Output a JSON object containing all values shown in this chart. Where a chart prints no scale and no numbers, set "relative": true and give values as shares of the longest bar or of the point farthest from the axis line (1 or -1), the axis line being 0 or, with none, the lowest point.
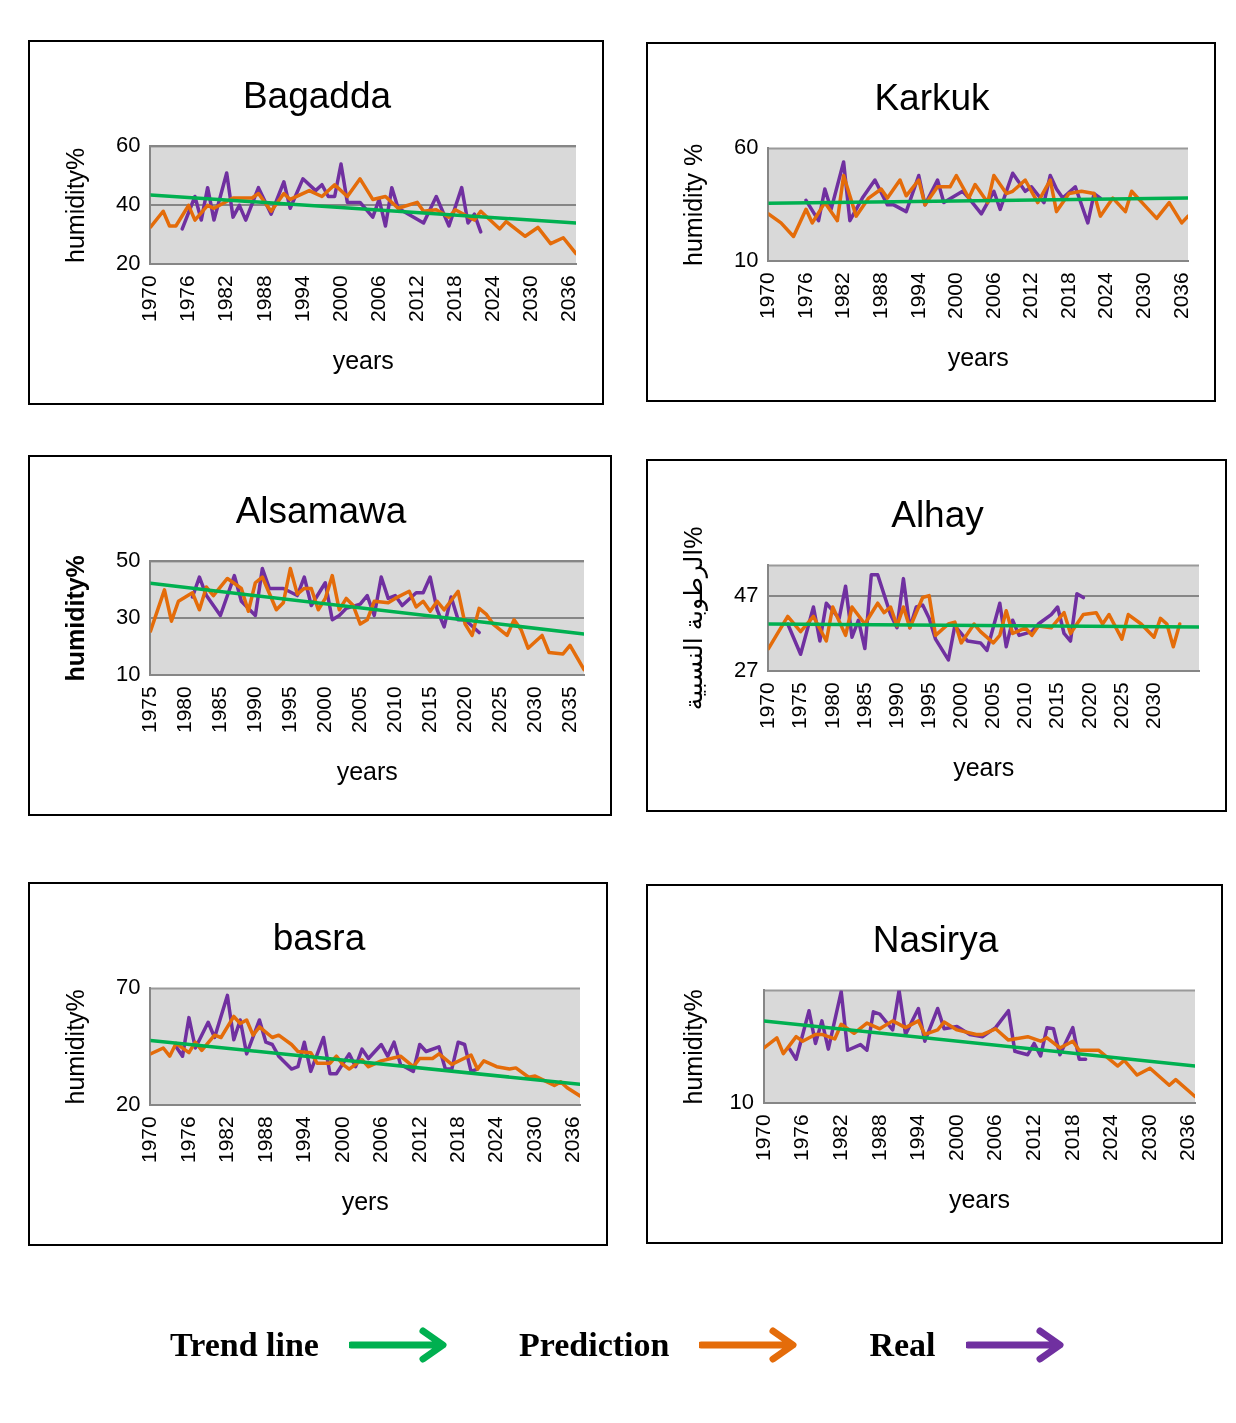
{
  "chart_data": [
    {
      "type": "line",
      "title": "Bagadda",
      "xlabel": "years",
      "ylabel": "humidity%",
      "xlim": [
        1970,
        2037
      ],
      "xticks": [
        1970,
        1976,
        1982,
        1988,
        1994,
        2000,
        2006,
        2012,
        2018,
        2024,
        2030,
        2036
      ],
      "ylim": [
        20,
        60
      ],
      "yticks": [
        20,
        40,
        60
      ],
      "grid": "y",
      "marker": "none",
      "series": [
        {
          "color": "#00b050",
          "x": [
            1970,
            2037
          ],
          "values": [
            43.5,
            34
          ]
        },
        {
          "color": "#e46c0a",
          "x": [
            1970,
            1972,
            1973,
            1974,
            1976,
            1977,
            1979,
            1980,
            1983,
            1986,
            1987,
            1989,
            1991,
            1992,
            1995,
            1997,
            1999,
            2001,
            2003,
            2005,
            2007,
            2009,
            2012,
            2013,
            2015,
            2017,
            2018,
            2021,
            2022,
            2025,
            2026,
            2029,
            2031,
            2033,
            2035,
            2037
          ],
          "values": [
            32.6,
            38,
            33,
            33,
            40,
            35,
            40,
            39,
            42.5,
            42.5,
            44,
            38,
            44,
            42,
            45,
            43,
            47,
            43,
            49,
            42,
            43,
            39,
            41,
            38,
            38.5,
            36,
            38.5,
            35,
            38,
            32,
            34.5,
            29.5,
            32.5,
            27,
            29,
            23.6
          ]
        },
        {
          "color": "#7030a0",
          "x": [
            1975,
            1977,
            1978,
            1979,
            1980,
            1982,
            1983,
            1984,
            1985,
            1987,
            1989,
            1991,
            1992,
            1994,
            1996,
            1997,
            1998,
            1999,
            2000,
            2001,
            2003,
            2005,
            2006,
            2007,
            2008,
            2009,
            2013,
            2015,
            2017,
            2019,
            2020,
            2021,
            2022
          ],
          "values": [
            32,
            43,
            35,
            46,
            35,
            51,
            36,
            40,
            35,
            46,
            37,
            48,
            39,
            49,
            45,
            47,
            43,
            43,
            54,
            41,
            41,
            36,
            42,
            33,
            46,
            39,
            34,
            43,
            33,
            46,
            34,
            37,
            31
          ]
        }
      ]
    },
    {
      "type": "line",
      "title": "Karkuk",
      "xlabel": "years",
      "ylabel": "humidity %",
      "xlim": [
        1970,
        2037
      ],
      "xticks": [
        1970,
        1976,
        1982,
        1988,
        1994,
        2000,
        2006,
        2012,
        2018,
        2024,
        2030,
        2036
      ],
      "ylim": [
        10,
        60
      ],
      "yticks": [
        10,
        60
      ],
      "marker": "none",
      "series": [
        {
          "color": "#00b050",
          "x": [
            1970,
            2037
          ],
          "values": [
            35.7,
            38
          ]
        },
        {
          "color": "#e46c0a",
          "x": [
            1970,
            1972,
            1974,
            1976,
            1977,
            1979,
            1981,
            1982,
            1984,
            1986,
            1988,
            1989,
            1991,
            1992,
            1994,
            1995,
            1997,
            1999,
            2000,
            2002,
            2003,
            2005,
            2006,
            2008,
            2009,
            2011,
            2013,
            2015,
            2016,
            2018,
            2020,
            2022,
            2023,
            2025,
            2027,
            2028,
            2030,
            2032,
            2034,
            2036,
            2037
          ],
          "values": [
            31,
            27,
            21,
            33,
            27,
            36,
            28,
            48,
            30,
            38,
            42,
            38,
            46,
            39,
            46,
            35,
            43,
            43,
            48,
            38,
            44,
            36,
            48,
            40,
            41,
            46,
            36,
            46,
            32,
            40,
            41,
            40,
            30,
            38,
            32,
            41,
            35,
            29,
            36,
            27,
            30
          ]
        },
        {
          "color": "#7030a0",
          "x": [
            1976,
            1978,
            1979,
            1980,
            1982,
            1983,
            1985,
            1987,
            1989,
            1990,
            1992,
            1994,
            1995,
            1997,
            1998,
            2001,
            2002,
            2004,
            2006,
            2007,
            2009,
            2011,
            2012,
            2014,
            2015,
            2016,
            2017,
            2019,
            2021,
            2022,
            2023
          ],
          "values": [
            37,
            28,
            42,
            33,
            54,
            28,
            38,
            46,
            35,
            35,
            32,
            48,
            35,
            46,
            36,
            41,
            38,
            31,
            41,
            33,
            49,
            41,
            43,
            36,
            48,
            42,
            38,
            43,
            27,
            40,
            38
          ]
        }
      ]
    },
    {
      "type": "line",
      "title": "Alsamawa",
      "xlabel": "years",
      "ylabel": "humidity%",
      "xlim": [
        1975,
        2037
      ],
      "xticks": [
        1975,
        1980,
        1985,
        1990,
        1995,
        2000,
        2005,
        2010,
        2015,
        2020,
        2025,
        2030,
        2035
      ],
      "ylim": [
        10,
        50
      ],
      "yticks": [
        10,
        30,
        50
      ],
      "grid": "y",
      "marker": "none",
      "series": [
        {
          "color": "#00b050",
          "x": [
            1975,
            2037
          ],
          "values": [
            42.3,
            24.5
          ]
        },
        {
          "color": "#e46c0a",
          "x": [
            1975,
            1977,
            1978,
            1979,
            1981,
            1982,
            1983,
            1984,
            1986,
            1988,
            1989,
            1990,
            1991,
            1993,
            1994,
            1995,
            1996,
            1997,
            1998,
            1999,
            2000,
            2001,
            2002,
            2003,
            2004,
            2005,
            2006,
            2007,
            2009,
            2010,
            2012,
            2013,
            2014,
            2015,
            2016,
            2017,
            2019,
            2020,
            2021,
            2022,
            2023,
            2024,
            2026,
            2027,
            2028,
            2029,
            2031,
            2032,
            2034,
            2035,
            2037
          ],
          "values": [
            25.5,
            40,
            29,
            36,
            39,
            33,
            41,
            38,
            44,
            40.5,
            32.5,
            42.5,
            44.5,
            33,
            35.5,
            47.5,
            38.5,
            40.5,
            40.5,
            33,
            37,
            45,
            33,
            37,
            34.5,
            28,
            29.5,
            36,
            35.5,
            37,
            39.5,
            34,
            36,
            32.5,
            36,
            33,
            39.5,
            28,
            24,
            33.5,
            31.5,
            28,
            24,
            29.5,
            26,
            19.5,
            24,
            18,
            17.5,
            20.5,
            12
          ]
        },
        {
          "color": "#7030a0",
          "x": [
            1981,
            1982,
            1983,
            1985,
            1987,
            1988,
            1990,
            1991,
            1992,
            1994,
            1996,
            1997,
            1998,
            2000,
            2001,
            2002,
            2003,
            2005,
            2006,
            2007,
            2008,
            2009,
            2010,
            2011,
            2013,
            2014,
            2015,
            2016,
            2017,
            2018,
            2019,
            2020,
            2022
          ],
          "values": [
            37.5,
            44.5,
            38,
            31,
            45,
            36,
            31,
            47.5,
            40.5,
            40.5,
            38,
            44.5,
            34.5,
            42.5,
            29.5,
            31,
            33.5,
            35,
            38,
            31,
            44.5,
            37,
            38,
            34.5,
            39,
            39,
            44.5,
            33,
            27,
            37.5,
            29.5,
            29.5,
            25
          ]
        }
      ]
    },
    {
      "type": "line",
      "title": "Alhay",
      "xlabel": "years",
      "ylabel": "الرطوبة النسبية%",
      "xlim": [
        1970,
        2037
      ],
      "xticks": [
        1970,
        1975,
        1980,
        1985,
        1990,
        1995,
        2000,
        2005,
        2010,
        2015,
        2020,
        2025,
        2030
      ],
      "ylim": [
        27,
        55
      ],
      "yticks": [
        27,
        47
      ],
      "grid": "y",
      "marker": "none",
      "series": [
        {
          "color": "#00b050",
          "x": [
            1970,
            2037
          ],
          "values": [
            39.5,
            38.7
          ]
        },
        {
          "color": "#e46c0a",
          "x": [
            1970,
            1973,
            1975,
            1977,
            1979,
            1980,
            1982,
            1983,
            1985,
            1987,
            1988,
            1989,
            1990,
            1991,
            1992,
            1994,
            1995,
            1996,
            1998,
            1999,
            2000,
            2002,
            2003,
            2005,
            2006,
            2007,
            2008,
            2010,
            2011,
            2012,
            2014,
            2015,
            2016,
            2017,
            2019,
            2021,
            2022,
            2023,
            2025,
            2026,
            2028,
            2030,
            2031,
            2032,
            2033,
            2034
          ],
          "values": [
            33,
            41.5,
            37.5,
            41.5,
            35,
            44,
            36.5,
            44,
            39.5,
            45,
            42.5,
            44,
            39,
            44,
            38.5,
            46.5,
            47,
            36.5,
            39.5,
            40,
            34.5,
            39.5,
            37.5,
            34.5,
            36.5,
            43,
            37,
            38.5,
            36.5,
            39,
            38.5,
            40.5,
            42.5,
            37,
            42,
            42.5,
            39.5,
            42,
            35.5,
            42,
            39.5,
            36,
            41,
            39.5,
            33.5,
            39.5
          ]
        },
        {
          "color": "#7030a0",
          "x": [
            1973,
            1975,
            1977,
            1978,
            1979,
            1981,
            1982,
            1983,
            1984,
            1985,
            1986,
            1987,
            1989,
            1990,
            1991,
            1992,
            1993,
            1994,
            1995,
            1996,
            1998,
            1999,
            2001,
            2003,
            2004,
            2006,
            2007,
            2008,
            2009,
            2011,
            2012,
            2014,
            2015,
            2016,
            2017,
            2018,
            2019
          ],
          "values": [
            39.5,
            31.5,
            44,
            35,
            45,
            41,
            49.5,
            36,
            40.5,
            33,
            52.5,
            52.5,
            42,
            38.5,
            51.5,
            38.5,
            44,
            44.5,
            41,
            35.5,
            30,
            39,
            35,
            34.5,
            32.5,
            45,
            33.5,
            40.5,
            36.5,
            37.5,
            39.5,
            42,
            44,
            37,
            35,
            47.5,
            46.5
          ]
        }
      ]
    },
    {
      "type": "line",
      "title": "basra",
      "xlabel": "yers",
      "ylabel": "humidity%",
      "xlim": [
        1970,
        2037
      ],
      "xticks": [
        1970,
        1976,
        1982,
        1988,
        1994,
        2000,
        2006,
        2012,
        2018,
        2024,
        2030,
        2036
      ],
      "ylim": [
        20,
        70
      ],
      "yticks": [
        20,
        70
      ],
      "marker": "none",
      "series": [
        {
          "color": "#00b050",
          "x": [
            1970,
            2037
          ],
          "values": [
            47.7,
            29
          ]
        },
        {
          "color": "#e46c0a",
          "x": [
            1970,
            1972,
            1973,
            1974,
            1976,
            1977,
            1978,
            1980,
            1981,
            1983,
            1984,
            1985,
            1986,
            1987,
            1989,
            1990,
            1992,
            1993,
            1995,
            1996,
            1998,
            1999,
            2000,
            2001,
            2003,
            2004,
            2006,
            2009,
            2011,
            2012,
            2014,
            2015,
            2017,
            2020,
            2021,
            2022,
            2024,
            2026,
            2027,
            2029,
            2030,
            2033,
            2034,
            2035,
            2037
          ],
          "values": [
            42,
            44.5,
            41,
            46.5,
            42.5,
            47,
            43.5,
            50,
            49,
            58,
            55,
            56.5,
            50,
            53.5,
            49,
            50,
            46,
            43,
            42.5,
            38,
            38,
            41,
            37.5,
            35.5,
            39.5,
            36.5,
            39,
            41,
            36.5,
            40,
            40,
            42,
            37.5,
            41.5,
            35.5,
            39,
            36.5,
            35.5,
            36,
            32,
            32.5,
            28.5,
            30,
            27.5,
            24
          ]
        },
        {
          "color": "#7030a0",
          "x": [
            1974,
            1975,
            1976,
            1977,
            1979,
            1980,
            1982,
            1983,
            1984,
            1985,
            1987,
            1988,
            1989,
            1990,
            1992,
            1993,
            1994,
            1995,
            1997,
            1998,
            1999,
            2001,
            2002,
            2003,
            2004,
            2006,
            2007,
            2008,
            2009,
            2011,
            2012,
            2013,
            2015,
            2016,
            2017,
            2018,
            2019,
            2020,
            2021
          ],
          "values": [
            45,
            41,
            57.5,
            44.5,
            55.5,
            49,
            67,
            48,
            56.5,
            42,
            56.5,
            47,
            46,
            41,
            35.5,
            36.5,
            47,
            34.5,
            49,
            33.5,
            33.5,
            42,
            36.5,
            44,
            40,
            46,
            41,
            47,
            37.5,
            34.5,
            46,
            43,
            45,
            35.5,
            35.5,
            47,
            46,
            34.5,
            35.5
          ]
        }
      ]
    },
    {
      "type": "line",
      "title": "Nasirya",
      "xlabel": "years",
      "ylabel": "humidity%",
      "relative": true,
      "annotations": [
        "10"
      ],
      "xlim": [
        1970,
        2037
      ],
      "xticks": [
        1970,
        1976,
        1982,
        1988,
        1994,
        2000,
        2006,
        2012,
        2018,
        2024,
        2030,
        2036
      ],
      "marker": "none",
      "legend": "bottom",
      "series": [
        {
          "name": "Trend line",
          "color": "#00b050",
          "x": [
            1970,
            2037
          ],
          "values": [
            0.73,
            0.33
          ]
        },
        {
          "name": "Prediction",
          "color": "#e46c0a",
          "x": [
            1970,
            1972,
            1973,
            1975,
            1976,
            1978,
            1979,
            1981,
            1982,
            1984,
            1986,
            1988,
            1990,
            1992,
            1994,
            1995,
            1997,
            1998,
            2000,
            2003,
            2004,
            2006,
            2008,
            2011,
            2013,
            2014,
            2016,
            2018,
            2019,
            2022,
            2025,
            2026,
            2028,
            2030,
            2033,
            2034,
            2037
          ],
          "values": [
            0.49,
            0.58,
            0.44,
            0.59,
            0.55,
            0.61,
            0.61,
            0.57,
            0.7,
            0.62,
            0.71,
            0.66,
            0.73,
            0.67,
            0.73,
            0.61,
            0.65,
            0.72,
            0.65,
            0.61,
            0.61,
            0.66,
            0.56,
            0.59,
            0.55,
            0.58,
            0.49,
            0.55,
            0.47,
            0.47,
            0.33,
            0.38,
            0.25,
            0.31,
            0.16,
            0.21,
            0.06
          ]
        },
        {
          "name": "Real",
          "color": "#7030a0",
          "x": [
            1974,
            1975,
            1977,
            1978,
            1979,
            1980,
            1982,
            1983,
            1985,
            1986,
            1987,
            1988,
            1990,
            1991,
            1992,
            1994,
            1995,
            1997,
            1998,
            2000,
            2002,
            2004,
            2006,
            2008,
            2009,
            2011,
            2012,
            2013,
            2014,
            2015,
            2016,
            2017,
            2018,
            2019,
            2020
          ],
          "values": [
            0.48,
            0.39,
            0.82,
            0.53,
            0.73,
            0.48,
            0.99,
            0.47,
            0.52,
            0.47,
            0.81,
            0.79,
            0.65,
            1,
            0.61,
            0.84,
            0.55,
            0.84,
            0.66,
            0.68,
            0.61,
            0.59,
            0.67,
            0.82,
            0.46,
            0.43,
            0.53,
            0.42,
            0.67,
            0.66,
            0.43,
            0.55,
            0.67,
            0.39,
            0.39
          ]
        }
      ]
    }
  ]
}
